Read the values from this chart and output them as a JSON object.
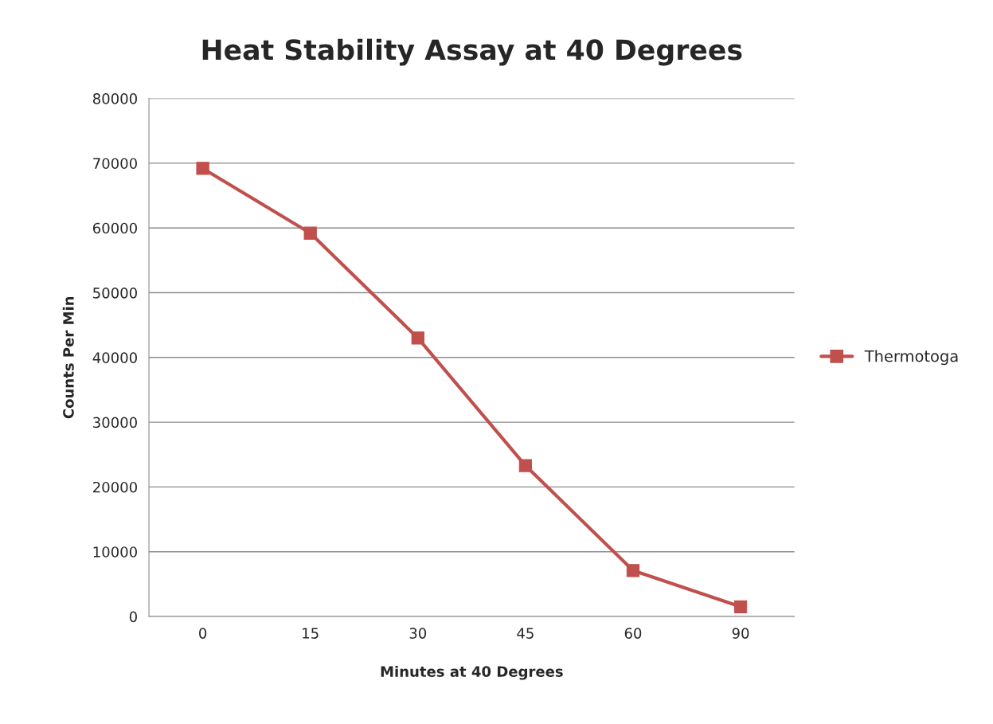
{
  "chart_data": {
    "type": "line",
    "title": "Heat Stability Assay at 40 Degrees",
    "xlabel": "Minutes at 40 Degrees",
    "ylabel": "Counts Per Min",
    "categories": [
      "0",
      "15",
      "30",
      "45",
      "60",
      "90"
    ],
    "series": [
      {
        "name": "Thermotoga",
        "color": "#c0504d",
        "values": [
          69200,
          59200,
          43000,
          23300,
          7100,
          1500
        ]
      }
    ],
    "ylim": [
      0,
      80000
    ],
    "yticks": [
      0,
      10000,
      20000,
      30000,
      40000,
      50000,
      60000,
      70000,
      80000
    ],
    "grid": "y",
    "legend": "right",
    "marker": "square",
    "line_style": "solid"
  }
}
